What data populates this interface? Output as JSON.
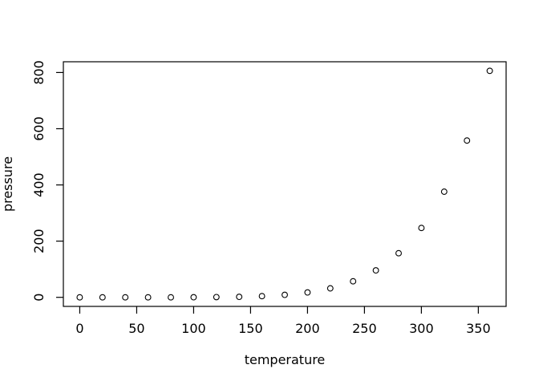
{
  "chart_data": {
    "type": "scatter",
    "title": "",
    "xlabel": "temperature",
    "ylabel": "pressure",
    "x": [
      0,
      20,
      40,
      60,
      80,
      100,
      120,
      140,
      160,
      180,
      200,
      220,
      240,
      260,
      280,
      300,
      320,
      340,
      360
    ],
    "y": [
      0.0002,
      0.0012,
      0.006,
      0.03,
      0.09,
      0.27,
      0.75,
      1.85,
      4.2,
      8.8,
      17.3,
      32.1,
      57,
      96,
      157,
      247,
      376,
      558,
      806
    ],
    "x_ticks": [
      0,
      50,
      100,
      150,
      200,
      250,
      300,
      350
    ],
    "y_ticks": [
      0,
      200,
      400,
      600,
      800
    ],
    "xlim": [
      -14.4,
      374.4
    ],
    "ylim": [
      -32.24,
      838.24
    ],
    "grid": false,
    "legend": "none",
    "marker": "open-circle",
    "marker_color": "#000000",
    "axis_color": "#000000",
    "background": "#ffffff"
  }
}
